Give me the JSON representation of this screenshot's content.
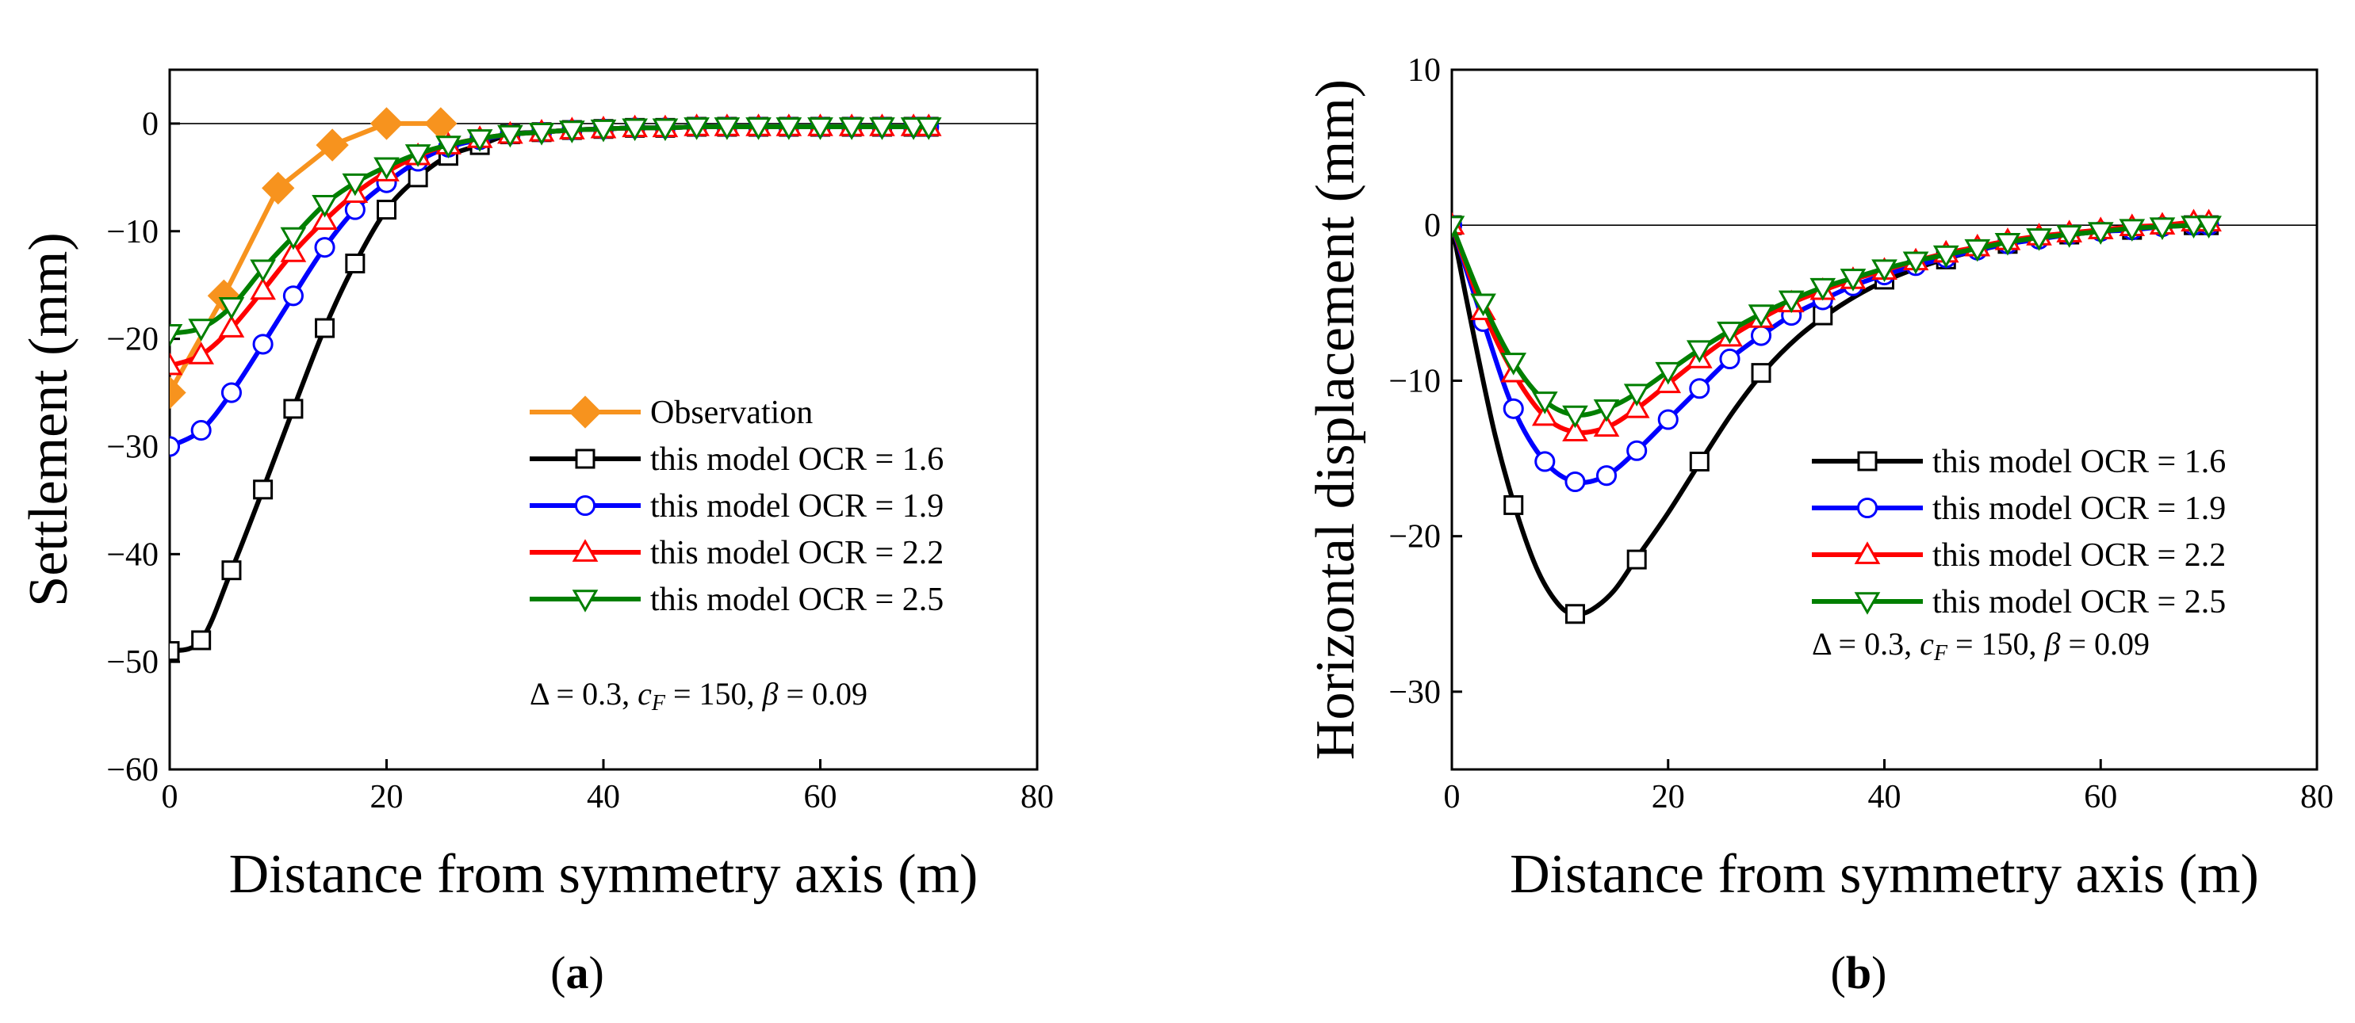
{
  "chart_data": [
    {
      "type": "line",
      "panel_label": "a",
      "xlabel": "Distance from symmetry axis (m)",
      "ylabel": "Settlement (mm)",
      "xlim": [
        0,
        80
      ],
      "ylim": [
        -60,
        5
      ],
      "xticks": [
        0,
        20,
        40,
        60,
        80
      ],
      "yticks": [
        0,
        -10,
        -20,
        -30,
        -40,
        -50,
        -60
      ],
      "legend_position": "bottom-right",
      "annotation": {
        "pre": "Δ = 0.3, ",
        "cvar": "c",
        "csub": "F",
        "mid": " = 150, ",
        "bvar": "β",
        "post": " = 0.09"
      },
      "series": [
        {
          "name": "Observation",
          "color": "#f7931e",
          "marker": "diamond",
          "smooth": false,
          "x": [
            0,
            5,
            10,
            15,
            20,
            25
          ],
          "y": [
            -25,
            -16,
            -6,
            -2,
            0,
            0
          ]
        },
        {
          "name": "this model OCR = 1.6",
          "color": "#000000",
          "marker": "square",
          "smooth": true,
          "x": [
            0,
            2.9,
            5.7,
            8.6,
            11.4,
            14.3,
            17.1,
            20,
            22.9,
            25.7,
            28.6,
            31.4,
            34.3,
            37.1,
            40,
            42.9,
            45.7,
            48.6,
            51.4,
            54.3,
            57.1,
            60,
            62.9,
            65.7,
            68.6,
            70
          ],
          "y": [
            -49,
            -48,
            -41.5,
            -34,
            -26.5,
            -19,
            -13,
            -8,
            -5,
            -3,
            -2,
            -1,
            -0.8,
            -0.6,
            -0.5,
            -0.4,
            -0.4,
            -0.3,
            -0.3,
            -0.3,
            -0.3,
            -0.3,
            -0.3,
            -0.3,
            -0.3,
            -0.3
          ]
        },
        {
          "name": "this model OCR = 1.9",
          "color": "#0000ff",
          "marker": "circle",
          "smooth": true,
          "x": [
            0,
            2.9,
            5.7,
            8.6,
            11.4,
            14.3,
            17.1,
            20,
            22.9,
            25.7,
            28.6,
            31.4,
            34.3,
            37.1,
            40,
            42.9,
            45.7,
            48.6,
            51.4,
            54.3,
            57.1,
            60,
            62.9,
            65.7,
            68.6,
            70
          ],
          "y": [
            -30,
            -28.5,
            -25,
            -20.5,
            -16,
            -11.5,
            -8,
            -5.5,
            -3.5,
            -2.2,
            -1.5,
            -1,
            -0.8,
            -0.6,
            -0.5,
            -0.4,
            -0.4,
            -0.3,
            -0.3,
            -0.3,
            -0.3,
            -0.3,
            -0.3,
            -0.3,
            -0.3,
            -0.3
          ]
        },
        {
          "name": "this model OCR = 2.2",
          "color": "#ff0000",
          "marker": "triangle-up",
          "smooth": true,
          "x": [
            0,
            2.9,
            5.7,
            8.6,
            11.4,
            14.3,
            17.1,
            20,
            22.9,
            25.7,
            28.6,
            31.4,
            34.3,
            37.1,
            40,
            42.9,
            45.7,
            48.6,
            51.4,
            54.3,
            57.1,
            60,
            62.9,
            65.7,
            68.6,
            70
          ],
          "y": [
            -22.5,
            -21.5,
            -19,
            -15.5,
            -12,
            -9,
            -6.5,
            -4.5,
            -3,
            -2,
            -1.4,
            -1,
            -0.8,
            -0.6,
            -0.5,
            -0.4,
            -0.4,
            -0.3,
            -0.3,
            -0.3,
            -0.3,
            -0.3,
            -0.3,
            -0.3,
            -0.3,
            -0.3
          ]
        },
        {
          "name": "this model OCR = 2.5",
          "color": "#007f00",
          "marker": "triangle-down",
          "smooth": true,
          "x": [
            0,
            2.9,
            5.7,
            8.6,
            11.4,
            14.3,
            17.1,
            20,
            22.9,
            25.7,
            28.6,
            31.4,
            34.3,
            37.1,
            40,
            42.9,
            45.7,
            48.6,
            51.4,
            54.3,
            57.1,
            60,
            62.9,
            65.7,
            68.6,
            70
          ],
          "y": [
            -19.5,
            -19,
            -17,
            -13.5,
            -10.5,
            -7.5,
            -5.5,
            -4,
            -2.8,
            -2,
            -1.4,
            -1,
            -0.8,
            -0.6,
            -0.5,
            -0.4,
            -0.4,
            -0.3,
            -0.3,
            -0.3,
            -0.3,
            -0.3,
            -0.3,
            -0.3,
            -0.3,
            -0.3
          ]
        }
      ]
    },
    {
      "type": "line",
      "panel_label": "b",
      "xlabel": "Distance from symmetry axis (m)",
      "ylabel": "Horizontal displacement (mm)",
      "xlim": [
        0,
        80
      ],
      "ylim": [
        -35,
        10
      ],
      "xticks": [
        0,
        20,
        40,
        60,
        80
      ],
      "yticks": [
        10,
        0,
        -10,
        -20,
        -30
      ],
      "legend_position": "bottom-right",
      "annotation": {
        "pre": "Δ = 0.3, ",
        "cvar": "c",
        "csub": "F",
        "mid": " = 150, ",
        "bvar": "β",
        "post": " = 0.09"
      },
      "series": [
        {
          "name": "this model OCR = 1.6",
          "color": "#000000",
          "marker": "square",
          "smooth": true,
          "x": [
            0,
            5.7,
            11.4,
            17.1,
            22.9,
            28.6,
            34.3,
            40,
            45.7,
            51.4,
            57.1,
            62.9,
            68.6,
            70
          ],
          "y": [
            0,
            -18,
            -25,
            -21.5,
            -15.2,
            -9.5,
            -5.8,
            -3.5,
            -2.2,
            -1.2,
            -0.6,
            -0.3,
            0,
            0
          ],
          "curve_x": [
            0,
            2,
            4,
            6,
            8,
            10,
            11.5,
            13,
            15,
            17,
            20,
            23,
            26,
            29,
            32,
            35,
            38,
            41,
            45,
            50,
            55,
            60,
            65,
            70
          ],
          "curve_y": [
            0,
            -7,
            -13.5,
            -18.5,
            -22.3,
            -24.5,
            -25,
            -24.7,
            -23.5,
            -21.5,
            -18.5,
            -15.2,
            -12,
            -9.3,
            -7.2,
            -5.6,
            -4.3,
            -3.3,
            -2.3,
            -1.4,
            -0.8,
            -0.4,
            -0.1,
            0
          ]
        },
        {
          "name": "this model OCR = 1.9",
          "color": "#0000ff",
          "marker": "circle",
          "smooth": true,
          "x": [
            0,
            2.9,
            5.7,
            8.6,
            11.4,
            14.3,
            17.1,
            20,
            22.9,
            25.7,
            28.6,
            31.4,
            34.3,
            37.1,
            40,
            42.9,
            45.7,
            48.6,
            51.4,
            54.3,
            57.1,
            60,
            62.9,
            65.7,
            68.6,
            70
          ],
          "y": [
            0,
            -6.2,
            -11.8,
            -15.2,
            -16.5,
            -16.1,
            -14.5,
            -12.5,
            -10.5,
            -8.6,
            -7.1,
            -5.8,
            -4.8,
            -3.9,
            -3.2,
            -2.6,
            -2.1,
            -1.6,
            -1.2,
            -0.9,
            -0.6,
            -0.4,
            -0.3,
            -0.1,
            0,
            0
          ]
        },
        {
          "name": "this model OCR = 2.2",
          "color": "#ff0000",
          "marker": "triangle-up",
          "smooth": true,
          "x": [
            0,
            2.9,
            5.7,
            8.6,
            11.4,
            14.3,
            17.1,
            20,
            22.9,
            25.7,
            28.6,
            31.4,
            34.3,
            37.1,
            40,
            42.9,
            45.7,
            48.6,
            51.4,
            54.3,
            57.1,
            60,
            62.9,
            65.7,
            68.6,
            70
          ],
          "y": [
            0,
            -5.5,
            -9.5,
            -12.3,
            -13.3,
            -13,
            -11.8,
            -10.2,
            -8.6,
            -7.2,
            -6,
            -5,
            -4.2,
            -3.5,
            -2.9,
            -2.3,
            -1.8,
            -1.4,
            -1,
            -0.7,
            -0.5,
            -0.3,
            -0.1,
            0,
            0.2,
            0.2
          ]
        },
        {
          "name": "this model OCR = 2.5",
          "color": "#007f00",
          "marker": "triangle-down",
          "smooth": true,
          "x": [
            0,
            2.9,
            5.7,
            8.6,
            11.4,
            14.3,
            17.1,
            20,
            22.9,
            25.7,
            28.6,
            31.4,
            34.3,
            37.1,
            40,
            42.9,
            45.7,
            48.6,
            51.4,
            54.3,
            57.1,
            60,
            62.9,
            65.7,
            68.6,
            70
          ],
          "y": [
            0,
            -5,
            -8.8,
            -11.3,
            -12.2,
            -11.8,
            -10.8,
            -9.4,
            -8,
            -6.8,
            -5.7,
            -4.8,
            -4,
            -3.4,
            -2.8,
            -2.3,
            -1.9,
            -1.5,
            -1.1,
            -0.8,
            -0.6,
            -0.4,
            -0.2,
            -0.1,
            0,
            0
          ]
        }
      ]
    }
  ]
}
